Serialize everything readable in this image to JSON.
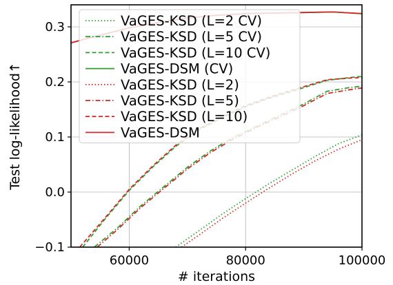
{
  "chart_data": {
    "type": "line",
    "xlabel": "# iterations",
    "ylabel": "Test log-likelihood↑",
    "xlim": [
      50000,
      100000
    ],
    "ylim": [
      -0.1,
      0.34
    ],
    "xticks": [
      60000,
      80000,
      100000
    ],
    "xtick_labels": [
      "60000",
      "80000",
      "100000"
    ],
    "yticks": [
      -0.1,
      0.0,
      0.1,
      0.2,
      0.3
    ],
    "ytick_labels": [
      "−0.1",
      "0.0",
      "0.1",
      "0.2",
      "0.3"
    ],
    "grid": true,
    "legend_position": "upper-left",
    "colors": {
      "green": "#2ca02c",
      "red": "#d62728"
    },
    "series": [
      {
        "name": "VaGES-KSD (L=2 CV)",
        "color": "#2ca02c",
        "style": "dotted",
        "x": [
          68000,
          72000,
          76000,
          80000,
          84000,
          88000,
          92000,
          96000,
          100000
        ],
        "y": [
          -0.1,
          -0.07,
          -0.04,
          -0.012,
          0.015,
          0.04,
          0.065,
          0.088,
          0.104
        ]
      },
      {
        "name": "VaGES-KSD (L=5 CV)",
        "color": "#2ca02c",
        "style": "dashdot",
        "x": [
          54000,
          58000,
          62000,
          66000,
          70000,
          74000,
          78000,
          82000,
          86000,
          90000,
          94000,
          98000,
          100000
        ],
        "y": [
          -0.1,
          -0.065,
          -0.025,
          0.01,
          0.045,
          0.075,
          0.1,
          0.12,
          0.14,
          0.16,
          0.183,
          0.19,
          0.192
        ]
      },
      {
        "name": "VaGES-KSD (L=10 CV)",
        "color": "#2ca02c",
        "style": "dashed",
        "x": [
          52000,
          56000,
          60000,
          64000,
          68000,
          72000,
          76000,
          80000,
          84000,
          88000,
          94000,
          98000,
          100000
        ],
        "y": [
          -0.1,
          -0.047,
          0.003,
          0.045,
          0.083,
          0.113,
          0.135,
          0.155,
          0.17,
          0.183,
          0.203,
          0.208,
          0.21
        ]
      },
      {
        "name": "VaGES-DSM (CV)",
        "color": "#2ca02c",
        "style": "solid",
        "x": [
          50000,
          55000,
          60000,
          65000,
          70000,
          75000,
          80000,
          85000,
          90000,
          95000,
          100000
        ],
        "y": [
          0.271,
          0.285,
          0.298,
          0.308,
          0.316,
          0.321,
          0.324,
          0.325,
          0.326,
          0.327,
          0.324
        ]
      },
      {
        "name": "VaGES-KSD (L=2)",
        "color": "#d62728",
        "style": "dotted",
        "x": [
          69000,
          72000,
          76000,
          80000,
          84000,
          88000,
          92000,
          96000,
          100000
        ],
        "y": [
          -0.1,
          -0.078,
          -0.048,
          -0.02,
          0.007,
          0.033,
          0.057,
          0.078,
          0.095
        ]
      },
      {
        "name": "VaGES-KSD (L=5)",
        "color": "#d62728",
        "style": "dashdot",
        "x": [
          54500,
          58000,
          62000,
          66000,
          70000,
          74000,
          78000,
          82000,
          86000,
          90000,
          94000,
          98000,
          100000
        ],
        "y": [
          -0.1,
          -0.068,
          -0.028,
          0.007,
          0.042,
          0.072,
          0.097,
          0.118,
          0.137,
          0.157,
          0.179,
          0.186,
          0.189
        ]
      },
      {
        "name": "VaGES-KSD (L=10)",
        "color": "#d62728",
        "style": "dashed",
        "x": [
          51500,
          56000,
          60000,
          64000,
          68000,
          72000,
          76000,
          80000,
          84000,
          88000,
          94000,
          98000,
          100000
        ],
        "y": [
          -0.1,
          -0.045,
          0.005,
          0.047,
          0.085,
          0.115,
          0.137,
          0.157,
          0.172,
          0.185,
          0.204,
          0.207,
          0.208
        ]
      },
      {
        "name": "VaGES-DSM",
        "color": "#d62728",
        "style": "solid",
        "x": [
          50000,
          55000,
          60000,
          65000,
          70000,
          75000,
          80000,
          85000,
          90000,
          95000,
          100000
        ],
        "y": [
          0.271,
          0.285,
          0.298,
          0.308,
          0.316,
          0.321,
          0.324,
          0.325,
          0.326,
          0.327,
          0.324
        ]
      }
    ]
  }
}
